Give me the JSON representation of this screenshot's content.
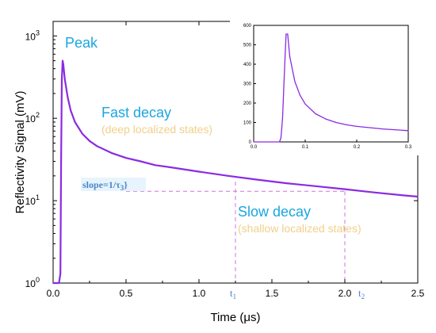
{
  "chart_data": [
    {
      "type": "line",
      "xlabel": "Time (μs)",
      "ylabel": "Reflectivity Signal (mV)",
      "xlim": [
        0,
        2.5
      ],
      "ylim": [
        1,
        1500
      ],
      "yscale": "log",
      "x_ticks": [
        "0.0",
        "0.5",
        "1.0",
        "1.5",
        "2.0",
        "2.5"
      ],
      "y_ticks": [
        {
          "base": "10",
          "exp": "0"
        },
        {
          "base": "10",
          "exp": "1"
        },
        {
          "base": "10",
          "exp": "2"
        },
        {
          "base": "10",
          "exp": "3"
        }
      ],
      "series": [
        {
          "color": "#8a2be2",
          "x": [
            0.0,
            0.04,
            0.05,
            0.055,
            0.06,
            0.065,
            0.07,
            0.08,
            0.1,
            0.12,
            0.15,
            0.2,
            0.25,
            0.3,
            0.4,
            0.5,
            0.6,
            0.7,
            0.8,
            1.0,
            1.2,
            1.4,
            1.6,
            1.8,
            2.0,
            2.2,
            2.4,
            2.5
          ],
          "y": [
            1,
            1,
            1.3,
            30,
            300,
            500,
            450,
            300,
            180,
            125,
            90,
            65,
            53,
            46,
            38,
            33,
            30,
            27,
            25.5,
            22.5,
            20,
            18,
            16.3,
            15,
            13.8,
            12.6,
            11.6,
            11.2
          ]
        }
      ],
      "annotations": {
        "peak": "Peak",
        "fast_decay": "Fast decay",
        "fast_decay_note": "(deep localized states)",
        "slow_decay": "Slow decay",
        "slow_decay_note": "(shallow localized states)",
        "slope": "slope=1/τ",
        "slope_sub": "3",
        "slope_end": "}",
        "t1": "t",
        "t1_sub": "1",
        "t2": "t",
        "t2_sub": "2",
        "t1_x": 1.25,
        "t2_x": 2.0,
        "slope_guide_y": 13
      },
      "colors": {
        "curve": "#8a2be2",
        "annotation": "#1aa6e0",
        "note": "#f0d08a",
        "guide": "#d070e0"
      }
    },
    {
      "type": "line",
      "xlim": [
        0,
        0.3
      ],
      "ylim": [
        0,
        600
      ],
      "x_ticks": [
        "0.0",
        "0.1",
        "0.2",
        "0.3"
      ],
      "y_ticks": [
        "0",
        "100",
        "200",
        "300",
        "400",
        "500",
        "600"
      ],
      "series": [
        {
          "color": "#8a2be2",
          "x": [
            0.0,
            0.05,
            0.053,
            0.056,
            0.06,
            0.063,
            0.066,
            0.07,
            0.08,
            0.09,
            0.1,
            0.12,
            0.14,
            0.16,
            0.18,
            0.2,
            0.25,
            0.3
          ],
          "y": [
            0,
            0,
            20,
            120,
            380,
            555,
            555,
            440,
            310,
            240,
            195,
            145,
            118,
            100,
            88,
            80,
            67,
            58
          ]
        }
      ]
    }
  ]
}
